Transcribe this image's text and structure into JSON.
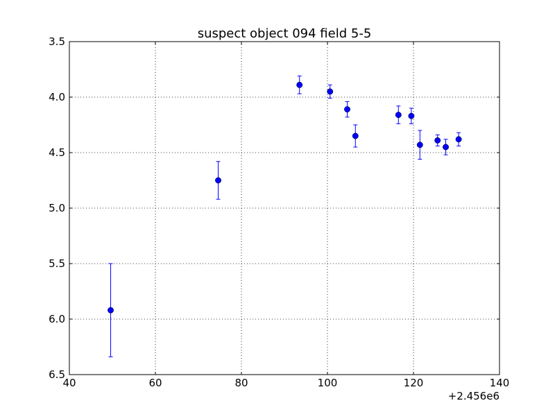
{
  "chart_data": {
    "type": "scatter",
    "title": "suspect object 094 field 5-5",
    "xlabel": "",
    "ylabel": "",
    "x_offset_label": "+2.456e6",
    "xlim": [
      40,
      140
    ],
    "ylim": [
      6.5,
      3.5
    ],
    "y_inverted": true,
    "grid": true,
    "grid_style": "dotted",
    "marker": "circle",
    "error_bars": true,
    "color": "#0000ff",
    "x_ticks": [
      40,
      60,
      80,
      100,
      120,
      140
    ],
    "x_tick_labels": [
      "40",
      "60",
      "80",
      "100",
      "120",
      "140"
    ],
    "y_ticks": [
      3.5,
      4.0,
      4.5,
      5.0,
      5.5,
      6.0,
      6.5
    ],
    "y_tick_labels": [
      "3.5",
      "4.0",
      "4.5",
      "5.0",
      "5.5",
      "6.0",
      "6.5"
    ],
    "series": [
      {
        "points": [
          {
            "x": 49.6,
            "y": 5.92,
            "err": 0.42
          },
          {
            "x": 74.6,
            "y": 4.75,
            "err": 0.17
          },
          {
            "x": 93.5,
            "y": 3.89,
            "err": 0.08
          },
          {
            "x": 100.6,
            "y": 3.95,
            "err": 0.06
          },
          {
            "x": 104.6,
            "y": 4.11,
            "err": 0.07
          },
          {
            "x": 106.5,
            "y": 4.35,
            "err": 0.1
          },
          {
            "x": 116.5,
            "y": 4.16,
            "err": 0.08
          },
          {
            "x": 119.5,
            "y": 4.17,
            "err": 0.07
          },
          {
            "x": 121.5,
            "y": 4.43,
            "err": 0.13
          },
          {
            "x": 125.6,
            "y": 4.39,
            "err": 0.05
          },
          {
            "x": 127.5,
            "y": 4.45,
            "err": 0.07
          },
          {
            "x": 130.5,
            "y": 4.38,
            "err": 0.06
          }
        ]
      }
    ]
  }
}
